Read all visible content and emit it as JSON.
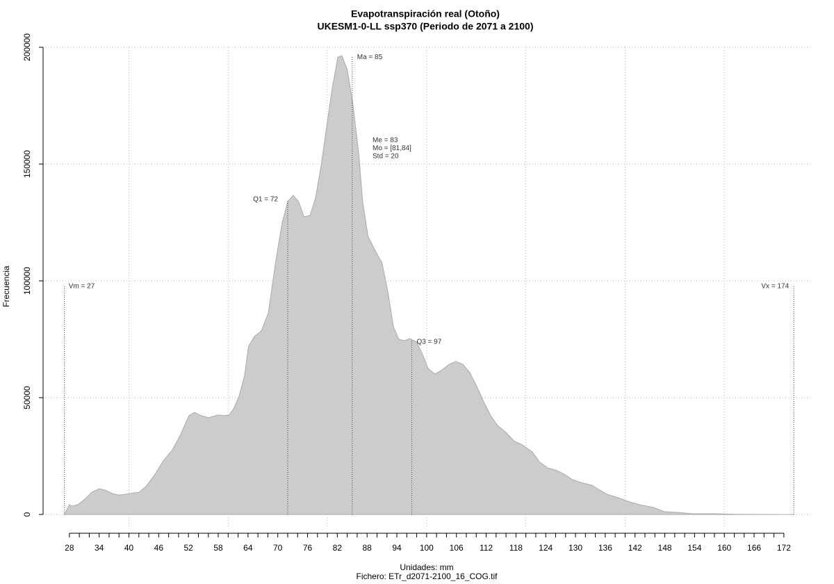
{
  "chart_data": {
    "type": "area",
    "title": "Evapotranspiración real (Otoño)",
    "subtitle": "UKESM1-0-LL ssp370 (Periodo de 2071 a 2100)",
    "x_label": "Unidades: mm",
    "caption": "Fichero: ETr_d2071-2100_16_COG.tif",
    "y_label": "Frecuencia",
    "color": "#cccccc",
    "x": [
      27,
      28,
      28.6,
      29.7,
      31.1,
      32.5,
      34,
      35.3,
      36.7,
      38.1,
      40,
      42,
      43.4,
      45.1,
      47,
      48.7,
      50.4,
      52.1,
      53.2,
      54.6,
      56,
      58,
      59.1,
      60.2,
      61.1,
      62.2,
      63.3,
      64.1,
      65.3,
      66.7,
      68.1,
      69.5,
      70.9,
      72,
      73.1,
      74.2,
      75.3,
      76.5,
      77.6,
      78.7,
      79.8,
      80.9,
      82.1,
      82.9,
      84,
      85.1,
      86.3,
      87.1,
      88.2,
      89.6,
      91,
      92.2,
      93.3,
      94.4,
      95.5,
      96.6,
      98,
      99.2,
      100.3,
      101.7,
      103.1,
      104.5,
      105.9,
      107.3,
      108.7,
      110.1,
      111.5,
      112.9,
      114.3,
      116,
      117.6,
      119.3,
      121.3,
      122.7,
      124.4,
      126.1,
      127.7,
      129.4,
      131.1,
      133.3,
      134.7,
      136.4,
      138.7,
      140.9,
      142.9,
      145.7,
      147.9,
      150.7,
      153.5,
      158.3,
      162.5,
      172,
      174
    ],
    "values": [
      0,
      4200,
      3600,
      4200,
      6500,
      9500,
      11000,
      10400,
      8900,
      8300,
      8900,
      9500,
      11900,
      16700,
      23200,
      27400,
      34200,
      42300,
      43700,
      42300,
      41400,
      42600,
      42300,
      42600,
      45200,
      50600,
      59500,
      72000,
      76200,
      78600,
      86300,
      107100,
      125000,
      133900,
      136600,
      133900,
      127400,
      128000,
      135400,
      148800,
      165200,
      181500,
      195800,
      196400,
      190500,
      176200,
      154800,
      133900,
      119000,
      113100,
      107700,
      95200,
      80400,
      75000,
      74400,
      75300,
      73800,
      68400,
      62500,
      60100,
      61900,
      64300,
      65500,
      64300,
      60700,
      54800,
      48200,
      42300,
      38100,
      35100,
      31500,
      29800,
      26800,
      22600,
      19900,
      19000,
      17300,
      14900,
      13700,
      12500,
      10700,
      8600,
      7100,
      5400,
      4200,
      3000,
      1200,
      900,
      300,
      300,
      100,
      0,
      0
    ],
    "xlim": [
      22.7,
      177.9
    ],
    "ylim": [
      0,
      200000
    ],
    "xticks": [
      28,
      34,
      40,
      46,
      52,
      58,
      64,
      70,
      76,
      82,
      88,
      94,
      100,
      106,
      112,
      118,
      124,
      130,
      136,
      142,
      148,
      154,
      160,
      166,
      172
    ],
    "xminorticks": [
      30,
      32,
      36,
      38,
      42,
      44,
      48,
      50,
      54,
      56,
      60,
      62,
      66,
      68,
      72,
      74,
      78,
      80,
      84,
      86,
      90,
      92,
      96,
      98,
      102,
      104,
      108,
      110,
      114,
      116,
      120,
      122,
      126,
      128,
      132,
      134,
      138,
      140,
      144,
      146,
      150,
      152,
      156,
      158,
      162,
      164,
      168,
      170
    ],
    "xgrid": [
      40,
      60,
      80,
      100,
      120,
      140,
      160
    ],
    "yticks": [
      0,
      50000,
      100000,
      150000,
      200000
    ],
    "grid": true,
    "annotations": [
      {
        "label": "Vm = 27",
        "x": 27,
        "y": 97600
      },
      {
        "label": "Q1 = 72",
        "x": 72,
        "y": 134800
      },
      {
        "label": "Ma = 85",
        "x": 85,
        "y": 195800
      },
      {
        "label": "Q3 = 97",
        "x": 97,
        "y": 75000
      },
      {
        "label": "Vx = 174",
        "x": 174,
        "y": 97600
      }
    ],
    "stats": [
      "Me = 83",
      "Mo = [81,84]",
      "Std = 20"
    ]
  }
}
